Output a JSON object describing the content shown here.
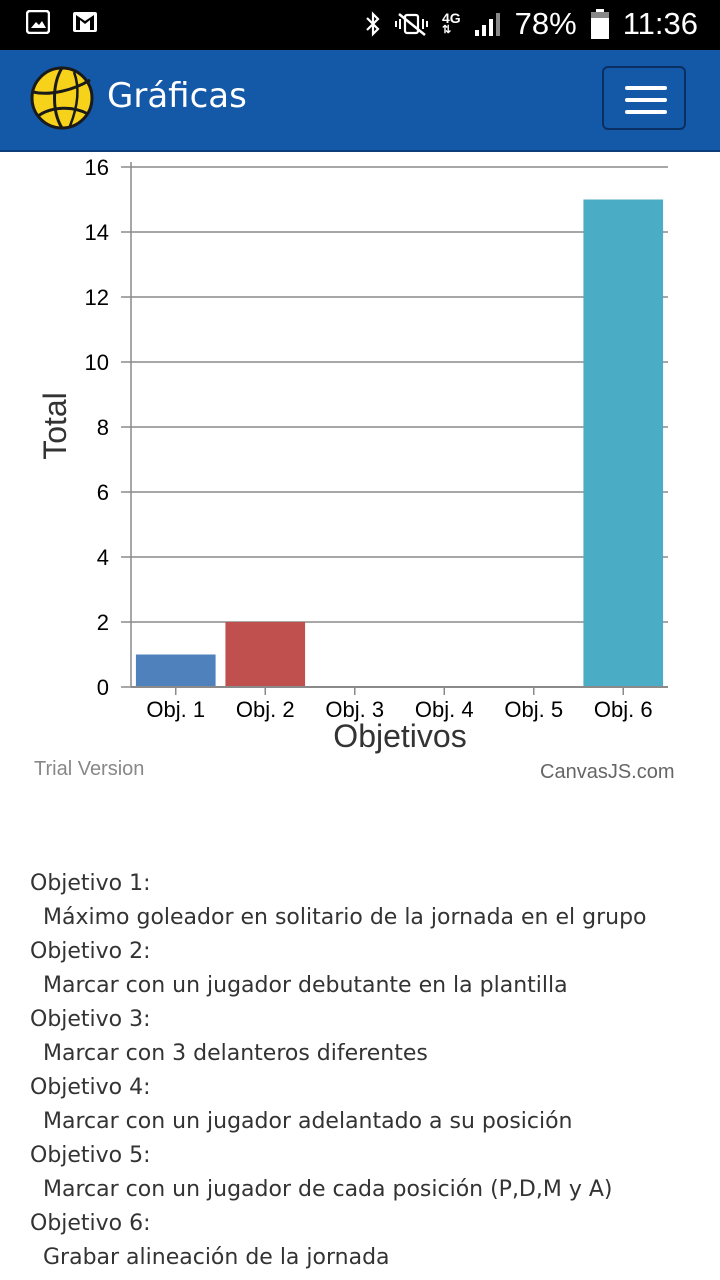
{
  "status_bar": {
    "network": "4G",
    "battery": "78%",
    "time": "11:36"
  },
  "app_bar": {
    "title": "Gráficas"
  },
  "chart_data": {
    "type": "bar",
    "categories": [
      "Obj. 1",
      "Obj. 2",
      "Obj. 3",
      "Obj. 4",
      "Obj. 5",
      "Obj. 6"
    ],
    "values": [
      1,
      2,
      0,
      0,
      0,
      15
    ],
    "colors": [
      "#4f81bc",
      "#c0504e",
      "#9bbb58",
      "#23bfaa",
      "#8064a1",
      "#4aacc5"
    ],
    "xlabel": "Objetivos",
    "ylabel": "Total",
    "ylim": [
      0,
      16
    ],
    "yticks": [
      0,
      2,
      4,
      6,
      8,
      10,
      12,
      14,
      16
    ],
    "grid": true
  },
  "chart_footer": {
    "trial": "Trial Version",
    "credit": "CanvasJS.com"
  },
  "objectives": [
    {
      "title": "Objetivo 1:",
      "description": "Máximo goleador en solitario de la jornada en el grupo"
    },
    {
      "title": "Objetivo 2:",
      "description": "Marcar con un jugador debutante en la plantilla"
    },
    {
      "title": "Objetivo 3:",
      "description": "Marcar con 3 delanteros diferentes"
    },
    {
      "title": "Objetivo 4:",
      "description": "Marcar con un jugador adelantado a su posición"
    },
    {
      "title": "Objetivo 5:",
      "description": "Marcar con un jugador de cada posición (P,D,M y A)"
    },
    {
      "title": "Objetivo 6:",
      "description": "Grabar alineación de la jornada"
    }
  ]
}
